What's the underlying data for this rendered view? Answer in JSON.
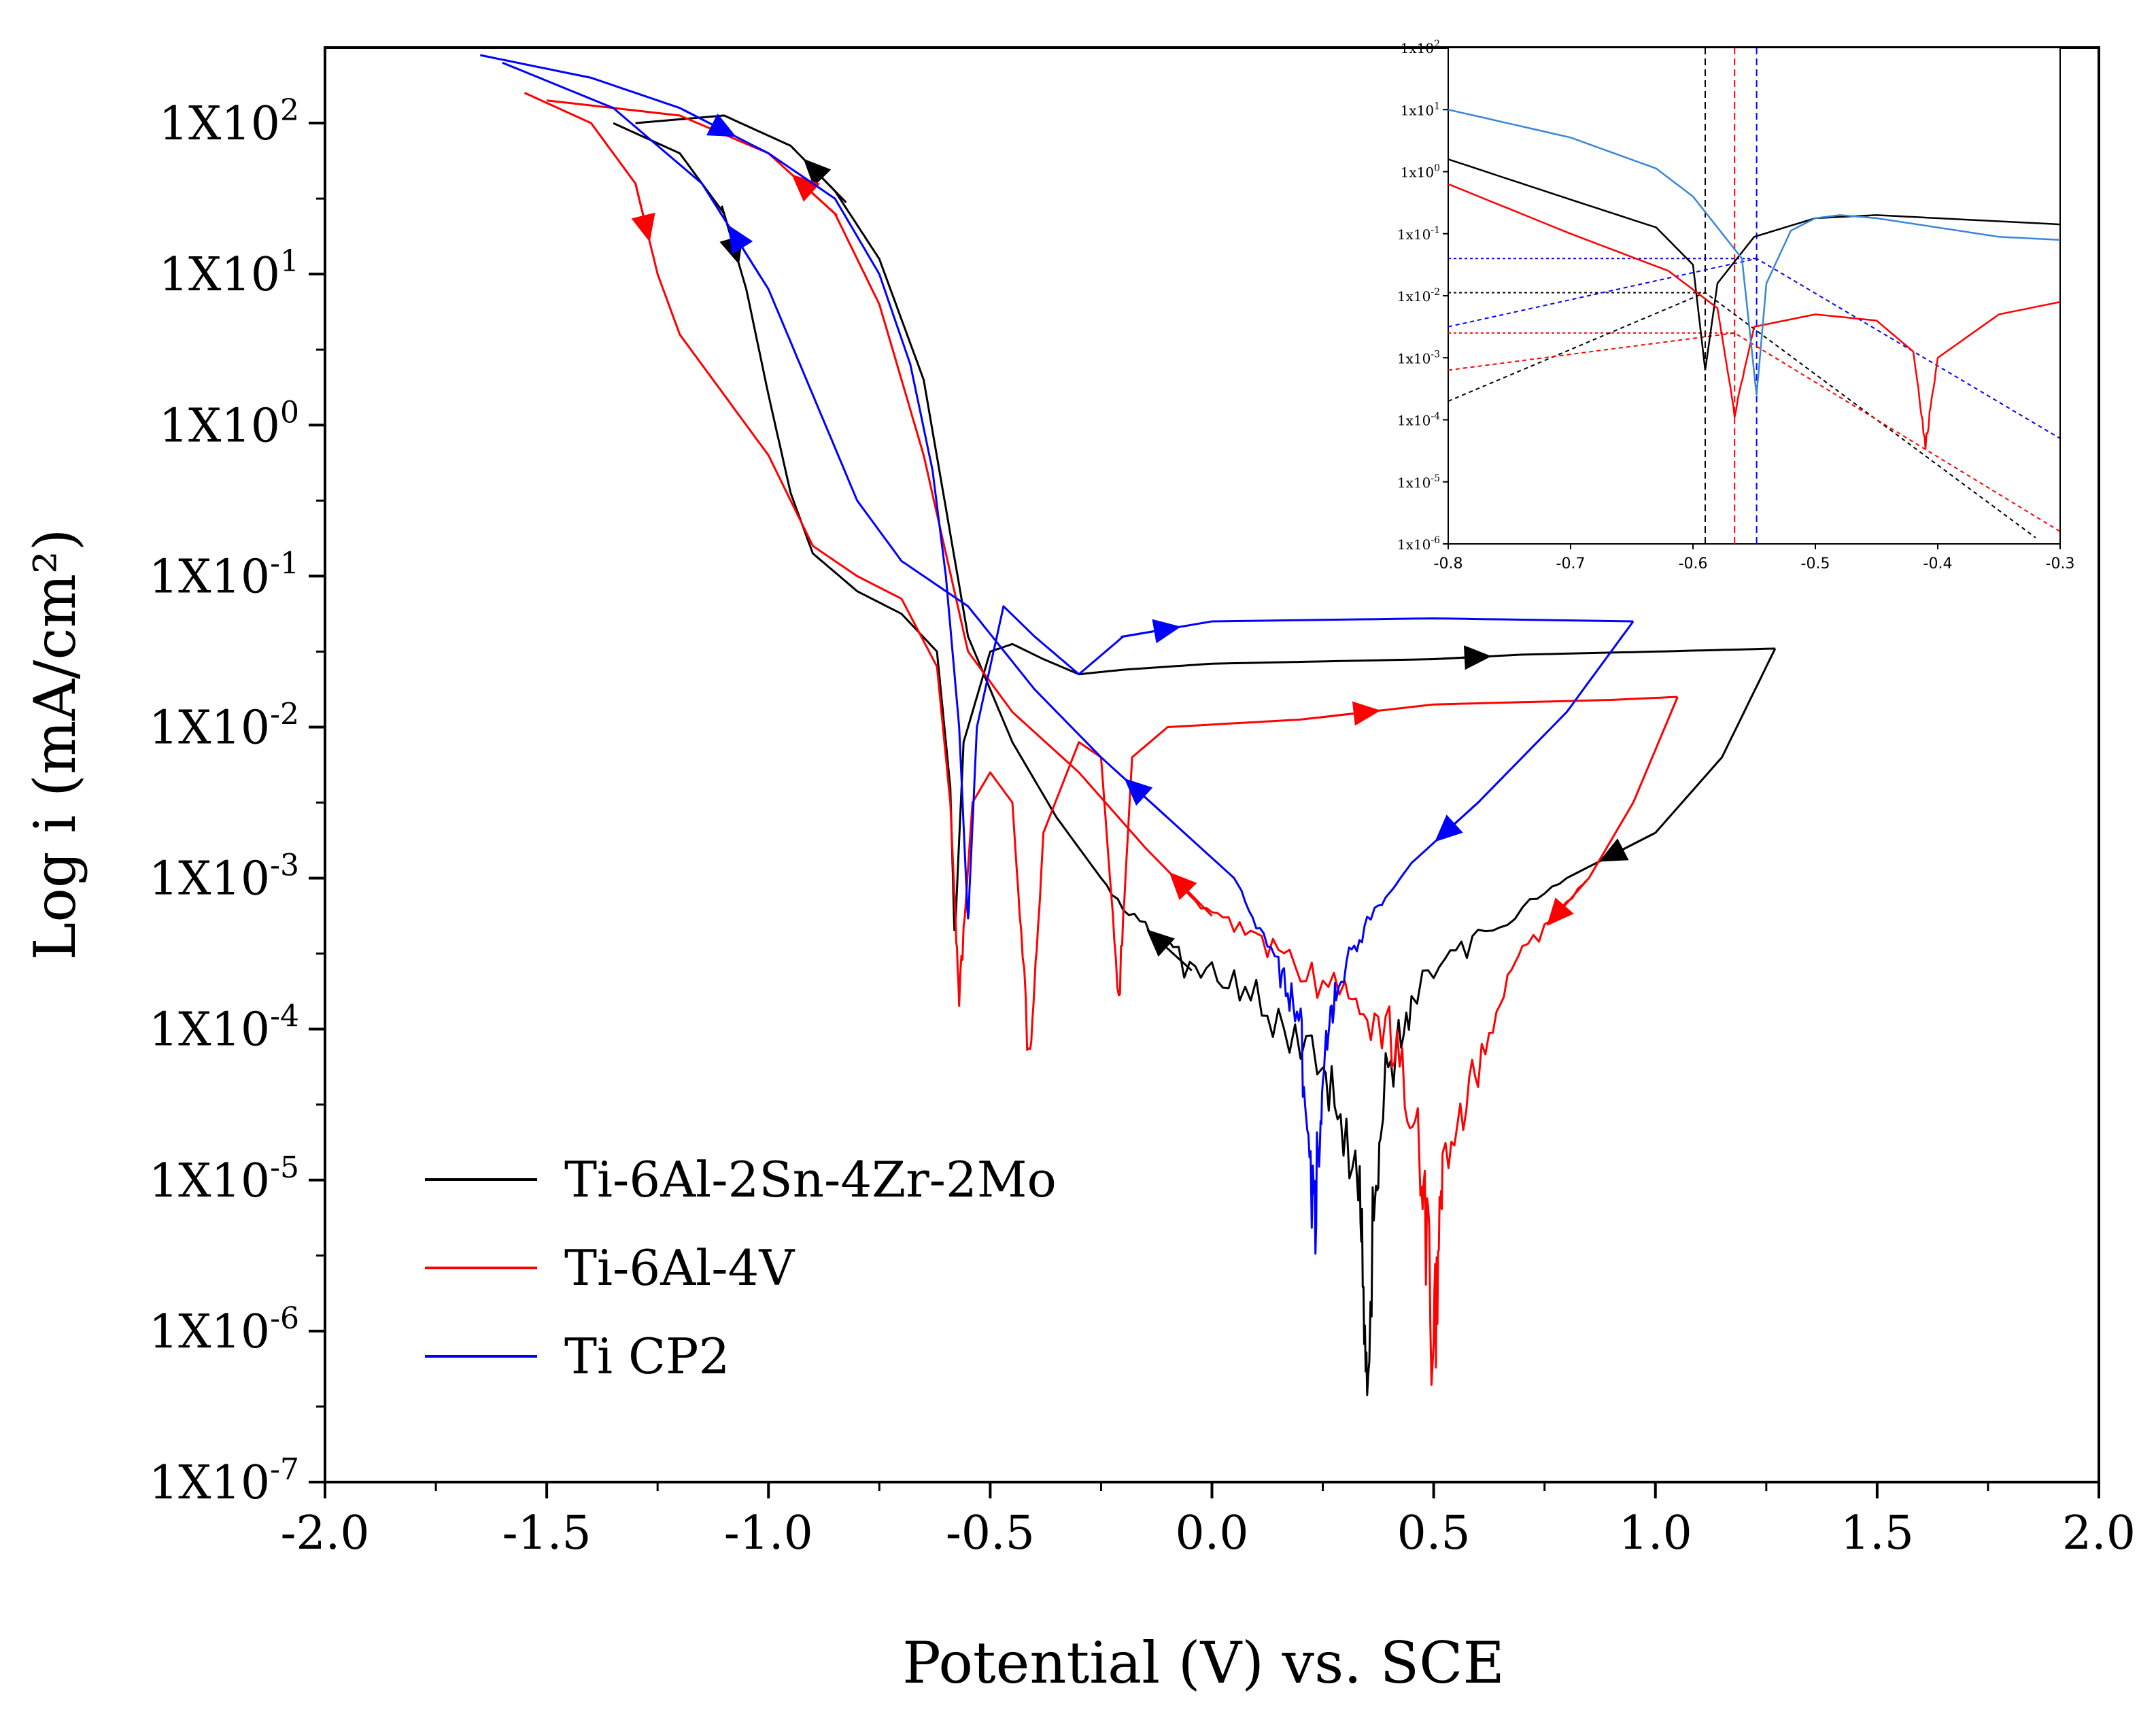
{
  "chart_data": [
    {
      "type": "line",
      "xlabel": "Potential (V) vs. SCE",
      "ylabel": "Log i (mA/cm²)",
      "xlim": [
        -2.0,
        2.0
      ],
      "ylim_log10": [
        -7,
        2.5
      ],
      "y_scale": "log",
      "x_ticks": [
        "-2.0",
        "-1.5",
        "-1.0",
        "-0.5",
        "0.0",
        "0.5",
        "1.0",
        "1.5",
        "2.0"
      ],
      "y_ticks": [
        {
          "mantissa": "1X10",
          "exp": "2"
        },
        {
          "mantissa": "1X10",
          "exp": "1"
        },
        {
          "mantissa": "1X10",
          "exp": "0"
        },
        {
          "mantissa": "1X10",
          "exp": "-1"
        },
        {
          "mantissa": "1X10",
          "exp": "-2"
        },
        {
          "mantissa": "1X10",
          "exp": "-3"
        },
        {
          "mantissa": "1X10",
          "exp": "-4"
        },
        {
          "mantissa": "1X10",
          "exp": "-5"
        },
        {
          "mantissa": "1X10",
          "exp": "-6"
        },
        {
          "mantissa": "1X10",
          "exp": "-7"
        }
      ],
      "legend_position": "bottom-left",
      "grid": false,
      "series": [
        {
          "name": "Ti-6Al-2Sn-4Zr-2Mo",
          "color": "#000000",
          "forward": [
            [
              -1.35,
              2.0
            ],
            [
              -1.2,
              1.8
            ],
            [
              -1.1,
              1.4
            ],
            [
              -1.05,
              0.9
            ],
            [
              -1.0,
              0.2
            ],
            [
              -0.95,
              -0.45
            ],
            [
              -0.9,
              -0.85
            ],
            [
              -0.8,
              -1.1
            ],
            [
              -0.7,
              -1.25
            ],
            [
              -0.62,
              -1.5
            ],
            [
              -0.59,
              -2.4
            ],
            [
              -0.58,
              -3.4
            ],
            [
              -0.56,
              -2.1
            ],
            [
              -0.5,
              -1.5
            ],
            [
              -0.45,
              -1.45
            ],
            [
              -0.38,
              -1.55
            ],
            [
              -0.3,
              -1.65
            ],
            [
              -0.2,
              -1.62
            ],
            [
              0.0,
              -1.58
            ],
            [
              0.5,
              -1.55
            ],
            [
              0.7,
              -1.52
            ],
            [
              1.0,
              -1.5
            ],
            [
              1.27,
              -1.48
            ]
          ],
          "reverse": [
            [
              1.27,
              -1.48
            ],
            [
              1.15,
              -2.2
            ],
            [
              1.0,
              -2.7
            ],
            [
              0.8,
              -3.0
            ],
            [
              0.6,
              -3.4
            ],
            [
              0.45,
              -3.8
            ],
            [
              0.38,
              -4.5
            ],
            [
              0.35,
              -6.0
            ],
            [
              0.33,
              -5.0
            ],
            [
              0.25,
              -4.2
            ],
            [
              0.1,
              -3.8
            ],
            [
              -0.05,
              -3.6
            ],
            [
              -0.2,
              -3.2
            ],
            [
              -0.35,
              -2.6
            ],
            [
              -0.45,
              -2.1
            ],
            [
              -0.55,
              -1.4
            ],
            [
              -0.65,
              0.3
            ],
            [
              -0.75,
              1.1
            ],
            [
              -0.85,
              1.55
            ],
            [
              -0.95,
              1.85
            ],
            [
              -1.1,
              2.05
            ],
            [
              -1.3,
              2.0
            ]
          ]
        },
        {
          "name": "Ti-6Al-4V",
          "color": "#ff0000",
          "forward": [
            [
              -1.55,
              2.2
            ],
            [
              -1.4,
              2.0
            ],
            [
              -1.3,
              1.6
            ],
            [
              -1.25,
              1.0
            ],
            [
              -1.2,
              0.6
            ],
            [
              -1.1,
              0.2
            ],
            [
              -1.0,
              -0.2
            ],
            [
              -0.95,
              -0.5
            ],
            [
              -0.9,
              -0.8
            ],
            [
              -0.8,
              -1.0
            ],
            [
              -0.7,
              -1.15
            ],
            [
              -0.62,
              -1.6
            ],
            [
              -0.59,
              -2.5
            ],
            [
              -0.57,
              -3.8
            ],
            [
              -0.54,
              -2.5
            ],
            [
              -0.5,
              -2.3
            ],
            [
              -0.45,
              -2.5
            ],
            [
              -0.41,
              -4.3
            ],
            [
              -0.38,
              -2.7
            ],
            [
              -0.3,
              -2.1
            ],
            [
              -0.25,
              -2.2
            ],
            [
              -0.21,
              -3.8
            ],
            [
              -0.18,
              -2.2
            ],
            [
              -0.1,
              -2.0
            ],
            [
              0.2,
              -1.95
            ],
            [
              0.5,
              -1.85
            ],
            [
              0.9,
              -1.82
            ],
            [
              1.05,
              -1.8
            ]
          ],
          "reverse": [
            [
              1.05,
              -1.8
            ],
            [
              0.95,
              -2.5
            ],
            [
              0.85,
              -3.0
            ],
            [
              0.7,
              -3.5
            ],
            [
              0.6,
              -4.2
            ],
            [
              0.52,
              -5.0
            ],
            [
              0.5,
              -6.1
            ],
            [
              0.47,
              -4.8
            ],
            [
              0.4,
              -4.0
            ],
            [
              0.3,
              -3.8
            ],
            [
              0.15,
              -3.5
            ],
            [
              0.0,
              -3.25
            ],
            [
              -0.15,
              -2.8
            ],
            [
              -0.3,
              -2.3
            ],
            [
              -0.45,
              -1.9
            ],
            [
              -0.55,
              -1.5
            ],
            [
              -0.65,
              -0.2
            ],
            [
              -0.75,
              0.8
            ],
            [
              -0.85,
              1.4
            ],
            [
              -1.0,
              1.8
            ],
            [
              -1.2,
              2.05
            ],
            [
              -1.5,
              2.15
            ]
          ]
        },
        {
          "name": "Ti CP2",
          "color": "#0000ff",
          "forward": [
            [
              -1.65,
              2.45
            ],
            [
              -1.4,
              2.3
            ],
            [
              -1.2,
              2.1
            ],
            [
              -1.0,
              1.8
            ],
            [
              -0.85,
              1.5
            ],
            [
              -0.75,
              1.0
            ],
            [
              -0.68,
              0.4
            ],
            [
              -0.63,
              -0.3
            ],
            [
              -0.6,
              -1.0
            ],
            [
              -0.57,
              -2.0
            ],
            [
              -0.55,
              -3.3
            ],
            [
              -0.53,
              -2.0
            ],
            [
              -0.47,
              -1.2
            ],
            [
              -0.4,
              -1.4
            ],
            [
              -0.3,
              -1.65
            ],
            [
              -0.2,
              -1.4
            ],
            [
              0.0,
              -1.3
            ],
            [
              0.5,
              -1.28
            ],
            [
              0.95,
              -1.3
            ]
          ],
          "reverse": [
            [
              0.95,
              -1.3
            ],
            [
              0.8,
              -1.9
            ],
            [
              0.6,
              -2.5
            ],
            [
              0.45,
              -2.9
            ],
            [
              0.35,
              -3.3
            ],
            [
              0.28,
              -3.7
            ],
            [
              0.25,
              -4.2
            ],
            [
              0.23,
              -5.4
            ],
            [
              0.2,
              -4.0
            ],
            [
              0.15,
              -3.6
            ],
            [
              0.05,
              -3.0
            ],
            [
              -0.1,
              -2.6
            ],
            [
              -0.25,
              -2.2
            ],
            [
              -0.4,
              -1.75
            ],
            [
              -0.55,
              -1.2
            ],
            [
              -0.7,
              -0.9
            ],
            [
              -0.8,
              -0.5
            ],
            [
              -0.9,
              0.2
            ],
            [
              -1.0,
              0.9
            ],
            [
              -1.15,
              1.6
            ],
            [
              -1.35,
              2.1
            ],
            [
              -1.6,
              2.4
            ]
          ]
        }
      ]
    },
    {
      "type": "line",
      "inset": true,
      "xlim": [
        -0.8,
        -0.3
      ],
      "ylim_log10": [
        -6,
        2
      ],
      "y_scale": "log",
      "x_ticks": [
        "-0.8",
        "-0.7",
        "-0.6",
        "-0.5",
        "-0.4",
        "-0.3"
      ],
      "y_ticks": [
        {
          "mantissa": "1x10",
          "exp": "2"
        },
        {
          "mantissa": "1x10",
          "exp": "1"
        },
        {
          "mantissa": "1x10",
          "exp": "0"
        },
        {
          "mantissa": "1x10",
          "exp": "-1"
        },
        {
          "mantissa": "1x10",
          "exp": "-2"
        },
        {
          "mantissa": "1x10",
          "exp": "-3"
        },
        {
          "mantissa": "1x10",
          "exp": "-4"
        },
        {
          "mantissa": "1x10",
          "exp": "-5"
        },
        {
          "mantissa": "1x10",
          "exp": "-6"
        }
      ],
      "series": [
        {
          "color": "#000000",
          "points": [
            [
              -0.8,
              0.2
            ],
            [
              -0.7,
              -0.45
            ],
            [
              -0.63,
              -0.9
            ],
            [
              -0.6,
              -1.5
            ],
            [
              -0.59,
              -3.2
            ],
            [
              -0.58,
              -1.8
            ],
            [
              -0.55,
              -1.05
            ],
            [
              -0.5,
              -0.75
            ],
            [
              -0.45,
              -0.7
            ],
            [
              -0.4,
              -0.75
            ],
            [
              -0.3,
              -0.85
            ]
          ]
        },
        {
          "color": "#ff0000",
          "points": [
            [
              -0.8,
              -0.2
            ],
            [
              -0.7,
              -1.0
            ],
            [
              -0.62,
              -1.6
            ],
            [
              -0.58,
              -2.2
            ],
            [
              -0.566,
              -3.9
            ],
            [
              -0.55,
              -2.5
            ],
            [
              -0.5,
              -2.3
            ],
            [
              -0.45,
              -2.4
            ],
            [
              -0.42,
              -2.9
            ],
            [
              -0.41,
              -4.4
            ],
            [
              -0.4,
              -3.0
            ],
            [
              -0.35,
              -2.3
            ],
            [
              -0.3,
              -2.1
            ]
          ]
        },
        {
          "color": "#3a86d6",
          "points": [
            [
              -0.8,
              1.0
            ],
            [
              -0.7,
              0.55
            ],
            [
              -0.63,
              0.05
            ],
            [
              -0.6,
              -0.4
            ],
            [
              -0.58,
              -0.9
            ],
            [
              -0.56,
              -1.4
            ],
            [
              -0.548,
              -3.6
            ],
            [
              -0.54,
              -1.8
            ],
            [
              -0.52,
              -0.95
            ],
            [
              -0.5,
              -0.75
            ],
            [
              -0.48,
              -0.7
            ],
            [
              -0.45,
              -0.75
            ],
            [
              -0.4,
              -0.9
            ],
            [
              -0.35,
              -1.05
            ],
            [
              -0.3,
              -1.1
            ]
          ]
        }
      ],
      "tafel_fits": [
        {
          "color": "#000000",
          "points": [
            [
              -0.8,
              -3.7
            ],
            [
              -0.59,
              -1.95
            ],
            [
              -0.32,
              -5.9
            ]
          ]
        },
        {
          "color": "#ff0000",
          "points": [
            [
              -0.8,
              -3.2
            ],
            [
              -0.566,
              -2.6
            ],
            [
              -0.3,
              -5.8
            ]
          ]
        },
        {
          "color": "#0000ff",
          "points": [
            [
              -0.8,
              -2.5
            ],
            [
              -0.548,
              -1.4
            ],
            [
              -0.3,
              -4.3
            ]
          ]
        }
      ],
      "corrosion_markers": [
        {
          "color": "#000000",
          "x": -0.59,
          "y": -1.95
        },
        {
          "color": "#ff0000",
          "x": -0.566,
          "y": -2.6
        },
        {
          "color": "#0000ff",
          "x": -0.548,
          "y": -1.4
        }
      ]
    }
  ]
}
